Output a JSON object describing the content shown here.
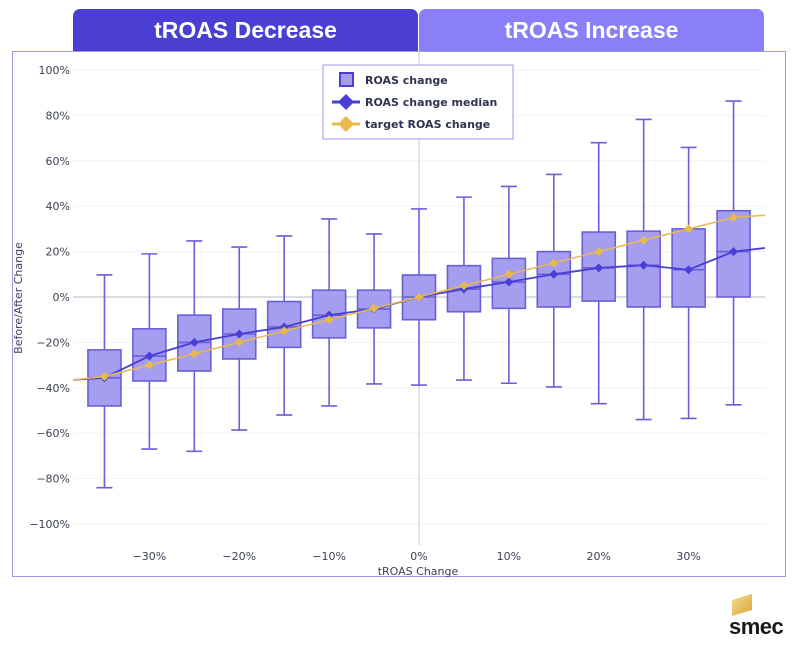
{
  "tabs": [
    {
      "label": "tROAS Decrease",
      "color": "#4a3fd2"
    },
    {
      "label": "tROAS Increase",
      "color": "#8a7ff8"
    }
  ],
  "brand": {
    "name": "smec"
  },
  "chart_data": {
    "type": "box",
    "title": "",
    "xlabel": "tROAS Change",
    "ylabel": "Before/After Change",
    "ylim": [
      -100,
      100
    ],
    "xlim": [
      -38.5,
      38.5
    ],
    "y_ticks": [
      100,
      80,
      60,
      40,
      20,
      0,
      -20,
      -40,
      -60,
      -80,
      -100
    ],
    "y_tick_labels": [
      "100%",
      "80%",
      "60%",
      "40%",
      "20%",
      "0%",
      "−20%",
      "−40%",
      "−60%",
      "−80%",
      "−100%"
    ],
    "x_ticks": [
      -30,
      -20,
      -10,
      0,
      10,
      20,
      30
    ],
    "x_tick_labels": [
      "−30%",
      "−20%",
      "−10%",
      "0%",
      "10%",
      "20%",
      "30%"
    ],
    "grid": true,
    "legend": {
      "position": "top-center",
      "entries": [
        {
          "label": "ROAS change",
          "marker": "square",
          "color": "#8f86ec"
        },
        {
          "label": "ROAS change median",
          "marker": "diamond-line",
          "color": "#4a3fd2"
        },
        {
          "label": "target ROAS change",
          "marker": "diamond-line",
          "color": "#e8b94c"
        }
      ]
    },
    "colors": {
      "box_fill": "#a49df0",
      "box_stroke": "#6a5fd8",
      "median_line": "#4a3fd2",
      "target_line": "#e8b94c"
    },
    "boxes": [
      {
        "x": -35,
        "min": -84,
        "q1": -48,
        "median": -35.6,
        "q3": -23.3,
        "max": 9.7
      },
      {
        "x": -30,
        "min": -67,
        "q1": -37,
        "median": -26,
        "q3": -14,
        "max": 19
      },
      {
        "x": -25,
        "min": -68,
        "q1": -32.6,
        "median": -20,
        "q3": -8,
        "max": 24.7
      },
      {
        "x": -20,
        "min": -58.6,
        "q1": -27.3,
        "median": -16.3,
        "q3": -5.3,
        "max": 22
      },
      {
        "x": -15,
        "min": -52,
        "q1": -22.2,
        "median": -13.2,
        "q3": -2,
        "max": 26.9
      },
      {
        "x": -10,
        "min": -48,
        "q1": -18,
        "median": -8,
        "q3": 3,
        "max": 34.4
      },
      {
        "x": -5,
        "min": -38.3,
        "q1": -13.6,
        "median": -5.3,
        "q3": 3,
        "max": 27.8
      },
      {
        "x": 0,
        "min": -38.8,
        "q1": -10,
        "median": 0,
        "q3": 9.7,
        "max": 38.8
      },
      {
        "x": 5,
        "min": -36.6,
        "q1": -6.5,
        "median": 3.5,
        "q3": 13.8,
        "max": 44
      },
      {
        "x": 10,
        "min": -38,
        "q1": -5,
        "median": 6.6,
        "q3": 17,
        "max": 48.7
      },
      {
        "x": 15,
        "min": -39.6,
        "q1": -4.4,
        "median": 10,
        "q3": 20,
        "max": 54
      },
      {
        "x": 20,
        "min": -47,
        "q1": -1.8,
        "median": 12.8,
        "q3": 28.6,
        "max": 68
      },
      {
        "x": 25,
        "min": -54,
        "q1": -4.4,
        "median": 14,
        "q3": 29,
        "max": 78.2
      },
      {
        "x": 30,
        "min": -53.5,
        "q1": -4.4,
        "median": 12,
        "q3": 30,
        "max": 65.9
      },
      {
        "x": 35,
        "min": -47.5,
        "q1": 0,
        "median": 20,
        "q3": 38,
        "max": 86.3
      }
    ],
    "series": [
      {
        "name": "ROAS change median",
        "x": [
          -38.5,
          -35,
          -30,
          -25,
          -20,
          -15,
          -10,
          -5,
          0,
          5,
          10,
          15,
          20,
          25,
          30,
          35,
          38.5
        ],
        "values": [
          -36.5,
          -35.6,
          -26,
          -20,
          -16.3,
          -13.2,
          -8,
          -5.3,
          0,
          3.5,
          6.6,
          10,
          12.8,
          14,
          12,
          20,
          21.6
        ]
      },
      {
        "name": "target ROAS change",
        "x": [
          -38.5,
          -35,
          -30,
          -25,
          -20,
          -15,
          -10,
          -5,
          0,
          5,
          10,
          15,
          20,
          25,
          30,
          35,
          38.5
        ],
        "values": [
          -36.5,
          -35,
          -30,
          -25,
          -20,
          -15,
          -10,
          -5,
          0,
          5,
          10,
          15,
          20,
          25,
          30,
          35,
          36
        ]
      }
    ]
  }
}
